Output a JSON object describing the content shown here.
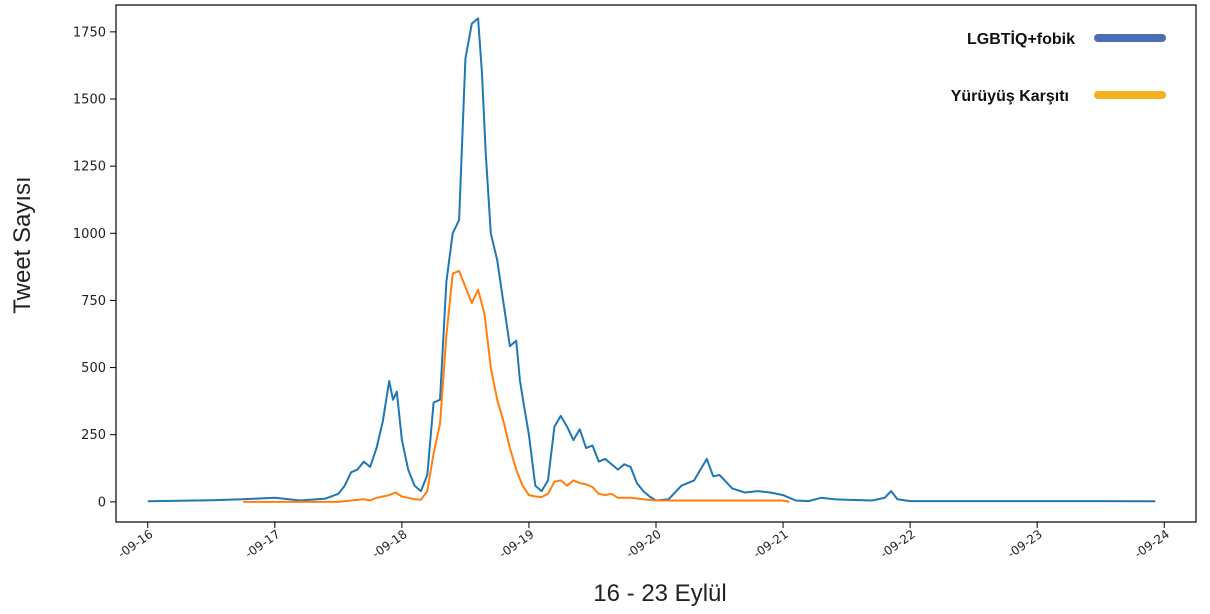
{
  "chart_data": {
    "type": "line",
    "title": "",
    "xlabel": "16 - 23 Eylül",
    "ylabel": "Tweet Sayısı",
    "ylim": [
      -75,
      1850
    ],
    "xlim": [
      -0.25,
      8.25
    ],
    "yticks": [
      0,
      250,
      500,
      750,
      1000,
      1250,
      1500,
      1750
    ],
    "xtick_labels": [
      "-09-16",
      "-09-17",
      "-09-18",
      "-09-19",
      "-09-20",
      "-09-21",
      "-09-22",
      "-09-23",
      "-09-24"
    ],
    "grid": false,
    "legend_position": "top-right",
    "series": [
      {
        "name": "LGBTİQ+fobik",
        "color": "#1f77b4",
        "legend_color": "#4c6db3",
        "x": [
          0,
          0.25,
          0.5,
          0.75,
          1.0,
          1.2,
          1.4,
          1.5,
          1.55,
          1.6,
          1.65,
          1.7,
          1.75,
          1.8,
          1.85,
          1.9,
          1.93,
          1.96,
          2.0,
          2.05,
          2.1,
          2.15,
          2.2,
          2.25,
          2.3,
          2.35,
          2.4,
          2.45,
          2.5,
          2.55,
          2.6,
          2.63,
          2.66,
          2.7,
          2.75,
          2.8,
          2.85,
          2.9,
          2.93,
          2.96,
          3.0,
          3.05,
          3.1,
          3.15,
          3.2,
          3.25,
          3.3,
          3.35,
          3.4,
          3.45,
          3.5,
          3.55,
          3.6,
          3.65,
          3.7,
          3.75,
          3.8,
          3.85,
          3.9,
          3.95,
          4.0,
          4.1,
          4.2,
          4.3,
          4.4,
          4.45,
          4.5,
          4.55,
          4.6,
          4.7,
          4.8,
          4.9,
          5.0,
          5.05,
          5.1,
          5.2,
          5.3,
          5.4,
          5.5,
          5.7,
          5.8,
          5.85,
          5.9,
          6.0,
          6.5,
          7.0,
          7.5,
          7.93
        ],
        "values": [
          2,
          4,
          6,
          10,
          15,
          5,
          12,
          30,
          60,
          110,
          120,
          150,
          130,
          200,
          300,
          450,
          380,
          410,
          230,
          120,
          60,
          40,
          100,
          370,
          380,
          820,
          1000,
          1050,
          1650,
          1780,
          1800,
          1600,
          1300,
          1000,
          900,
          740,
          580,
          600,
          450,
          360,
          250,
          60,
          40,
          80,
          280,
          320,
          280,
          230,
          270,
          200,
          210,
          150,
          160,
          140,
          120,
          140,
          130,
          70,
          40,
          20,
          5,
          10,
          60,
          80,
          160,
          95,
          100,
          75,
          50,
          35,
          40,
          35,
          25,
          15,
          5,
          3,
          15,
          10,
          8,
          5,
          15,
          40,
          10,
          3,
          3,
          3,
          3,
          2
        ]
      },
      {
        "name": "Yürüyüş Karşıtı",
        "color": "#ff7f0e",
        "legend_color": "#f5b120",
        "x": [
          0.75,
          1.0,
          1.2,
          1.4,
          1.5,
          1.6,
          1.7,
          1.75,
          1.8,
          1.85,
          1.9,
          1.95,
          2.0,
          2.05,
          2.1,
          2.15,
          2.2,
          2.25,
          2.3,
          2.35,
          2.4,
          2.45,
          2.5,
          2.55,
          2.6,
          2.65,
          2.7,
          2.75,
          2.8,
          2.85,
          2.9,
          2.95,
          3.0,
          3.05,
          3.1,
          3.15,
          3.2,
          3.25,
          3.3,
          3.35,
          3.4,
          3.45,
          3.5,
          3.55,
          3.6,
          3.65,
          3.7,
          3.8,
          3.9,
          4.0,
          4.2,
          4.4,
          4.6,
          4.8,
          5.0,
          5.05
        ],
        "values": [
          0,
          0,
          0,
          0,
          0,
          5,
          10,
          5,
          15,
          20,
          25,
          35,
          20,
          15,
          10,
          8,
          40,
          180,
          290,
          620,
          850,
          860,
          800,
          740,
          790,
          700,
          500,
          380,
          300,
          200,
          120,
          60,
          25,
          20,
          18,
          30,
          75,
          80,
          60,
          80,
          70,
          65,
          55,
          30,
          25,
          30,
          15,
          15,
          10,
          5,
          5,
          5,
          5,
          5,
          5,
          0
        ]
      }
    ]
  }
}
